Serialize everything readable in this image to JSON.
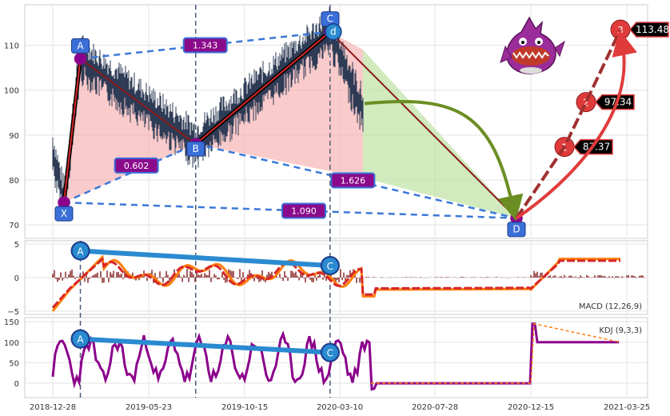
{
  "chart_data": {
    "type": "line",
    "title": "",
    "x_ticks": [
      "2018-12-28",
      "2019-05-23",
      "2019-10-15",
      "2020-03-10",
      "2020-07-28",
      "2020-12-15",
      "2021-03-25"
    ],
    "price_panel": {
      "ylim": [
        67,
        119
      ],
      "yticks": [
        70,
        80,
        90,
        100,
        110
      ],
      "pattern_points": [
        {
          "label": "X",
          "date": "2019-01-14",
          "value": 75
        },
        {
          "label": "A",
          "date": "2019-02-08",
          "value": 107
        },
        {
          "label": "B",
          "date": "2019-08-02",
          "value": 88
        },
        {
          "label": "C",
          "date": "2020-02-24",
          "value": 113
        },
        {
          "label": "D",
          "date": "2020-11-24",
          "value": 71.5
        }
      ],
      "ratios": [
        {
          "text": "1.343",
          "from": "A",
          "to": "C"
        },
        {
          "text": "0.602",
          "from": "X",
          "to": "B"
        },
        {
          "text": "1.626",
          "from": "B",
          "to": "D"
        },
        {
          "text": "1.090",
          "from": "X",
          "to": "D"
        }
      ],
      "targets": [
        {
          "num": "1",
          "value": 87.37,
          "label": "87.37"
        },
        {
          "num": "2",
          "value": 97.34,
          "label": "97.34"
        },
        {
          "num": "3",
          "value": 113.48,
          "label": "113.48"
        }
      ]
    },
    "macd_panel": {
      "label": "MACD (12,26,9)",
      "ylim": [
        -5.5,
        5.5
      ],
      "yticks": [
        -5,
        0,
        5
      ],
      "divergence": [
        {
          "label": "A"
        },
        {
          "label": "C"
        }
      ]
    },
    "kdj_panel": {
      "label": "KDJ (9,3,3)",
      "ylim": [
        -35,
        160
      ],
      "yticks": [
        0,
        50,
        100,
        150
      ],
      "divergence": [
        {
          "label": "A"
        },
        {
          "label": "C"
        }
      ]
    },
    "colors": {
      "price": "#2e3b55",
      "pattern_line": "#d62728",
      "dashed": "#3b78d8",
      "fill_red": "#f7a8a8",
      "fill_green": "#bde3a4",
      "arrow_green": "#6b8e23",
      "arrow_red": "#e03b3b",
      "ratio_box": "#8b0a8b",
      "point_box": "#3b6fd8",
      "macd_fast": "#ff7f0e",
      "macd_slow": "#d62728",
      "kdj_k": "#8b008b",
      "div_line": "#2a8ad0"
    }
  }
}
